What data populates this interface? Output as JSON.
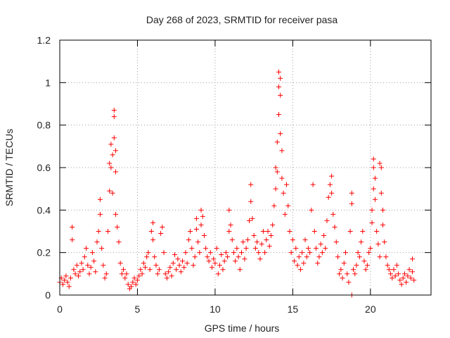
{
  "chart_data": {
    "type": "scatter",
    "title": "Day 268 of 2023, SRMTID for receiver pasa",
    "xlabel": "GPS time / hours",
    "ylabel": "SRMTID / TECUs",
    "xlim": [
      0,
      23.9
    ],
    "ylim": [
      0,
      1.2
    ],
    "xticks": [
      0,
      5,
      10,
      15,
      20
    ],
    "yticks": [
      0,
      0.2,
      0.4,
      0.6,
      0.8,
      1,
      1.2
    ],
    "ytick_labels": [
      "0",
      "0.2",
      "0.4",
      "0.6",
      "0.8",
      "1",
      "1.2"
    ],
    "grid": true,
    "marker": "+",
    "series": [
      {
        "name": "SRMTID",
        "color": "#ff0000",
        "points": [
          [
            0.0,
            0.06
          ],
          [
            0.1,
            0.08
          ],
          [
            0.2,
            0.05
          ],
          [
            0.3,
            0.07
          ],
          [
            0.4,
            0.09
          ],
          [
            0.5,
            0.06
          ],
          [
            0.6,
            0.04
          ],
          [
            0.7,
            0.08
          ],
          [
            0.8,
            0.32
          ],
          [
            0.8,
            0.26
          ],
          [
            0.9,
            0.12
          ],
          [
            1.0,
            0.1
          ],
          [
            1.1,
            0.14
          ],
          [
            1.2,
            0.09
          ],
          [
            1.3,
            0.11
          ],
          [
            1.4,
            0.15
          ],
          [
            1.5,
            0.12
          ],
          [
            1.6,
            0.18
          ],
          [
            1.7,
            0.22
          ],
          [
            1.8,
            0.14
          ],
          [
            1.9,
            0.1
          ],
          [
            2.0,
            0.13
          ],
          [
            2.1,
            0.2
          ],
          [
            2.2,
            0.16
          ],
          [
            2.3,
            0.11
          ],
          [
            2.4,
            0.25
          ],
          [
            2.5,
            0.3
          ],
          [
            2.6,
            0.38
          ],
          [
            2.6,
            0.45
          ],
          [
            2.7,
            0.22
          ],
          [
            2.8,
            0.14
          ],
          [
            2.9,
            0.08
          ],
          [
            3.0,
            0.1
          ],
          [
            3.1,
            0.3
          ],
          [
            3.2,
            0.49
          ],
          [
            3.2,
            0.62
          ],
          [
            3.3,
            0.71
          ],
          [
            3.3,
            0.6
          ],
          [
            3.4,
            0.66
          ],
          [
            3.4,
            0.48
          ],
          [
            3.5,
            0.74
          ],
          [
            3.5,
            0.87
          ],
          [
            3.5,
            0.84
          ],
          [
            3.6,
            0.68
          ],
          [
            3.6,
            0.58
          ],
          [
            3.6,
            0.38
          ],
          [
            3.7,
            0.32
          ],
          [
            3.8,
            0.25
          ],
          [
            3.9,
            0.15
          ],
          [
            4.0,
            0.1
          ],
          [
            4.1,
            0.12
          ],
          [
            4.2,
            0.08
          ],
          [
            4.3,
            0.1
          ],
          [
            4.4,
            0.05
          ],
          [
            4.5,
            0.03
          ],
          [
            4.6,
            0.04
          ],
          [
            4.7,
            0.06
          ],
          [
            4.8,
            0.08
          ],
          [
            4.9,
            0.05
          ],
          [
            5.0,
            0.07
          ],
          [
            5.1,
            0.09
          ],
          [
            5.2,
            0.12
          ],
          [
            5.3,
            0.1
          ],
          [
            5.4,
            0.15
          ],
          [
            5.5,
            0.13
          ],
          [
            5.6,
            0.18
          ],
          [
            5.7,
            0.2
          ],
          [
            5.8,
            0.12
          ],
          [
            5.9,
            0.3
          ],
          [
            6.0,
            0.34
          ],
          [
            6.0,
            0.26
          ],
          [
            6.1,
            0.18
          ],
          [
            6.2,
            0.14
          ],
          [
            6.3,
            0.1
          ],
          [
            6.4,
            0.12
          ],
          [
            6.5,
            0.29
          ],
          [
            6.6,
            0.32
          ],
          [
            6.7,
            0.2
          ],
          [
            6.8,
            0.1
          ],
          [
            6.9,
            0.08
          ],
          [
            7.0,
            0.11
          ],
          [
            7.1,
            0.13
          ],
          [
            7.2,
            0.09
          ],
          [
            7.3,
            0.15
          ],
          [
            7.4,
            0.19
          ],
          [
            7.5,
            0.12
          ],
          [
            7.6,
            0.17
          ],
          [
            7.7,
            0.14
          ],
          [
            7.8,
            0.11
          ],
          [
            7.9,
            0.16
          ],
          [
            8.0,
            0.13
          ],
          [
            8.1,
            0.2
          ],
          [
            8.2,
            0.15
          ],
          [
            8.3,
            0.26
          ],
          [
            8.4,
            0.3
          ],
          [
            8.5,
            0.22
          ],
          [
            8.6,
            0.14
          ],
          [
            8.7,
            0.18
          ],
          [
            8.8,
            0.36
          ],
          [
            8.8,
            0.31
          ],
          [
            8.9,
            0.25
          ],
          [
            9.0,
            0.2
          ],
          [
            9.1,
            0.33
          ],
          [
            9.1,
            0.4
          ],
          [
            9.2,
            0.37
          ],
          [
            9.3,
            0.28
          ],
          [
            9.4,
            0.22
          ],
          [
            9.5,
            0.18
          ],
          [
            9.6,
            0.16
          ],
          [
            9.7,
            0.2
          ],
          [
            9.8,
            0.13
          ],
          [
            9.9,
            0.17
          ],
          [
            10.0,
            0.15
          ],
          [
            10.1,
            0.22
          ],
          [
            10.2,
            0.1
          ],
          [
            10.3,
            0.14
          ],
          [
            10.4,
            0.19
          ],
          [
            10.5,
            0.12
          ],
          [
            10.6,
            0.16
          ],
          [
            10.7,
            0.2
          ],
          [
            10.8,
            0.18
          ],
          [
            10.9,
            0.3
          ],
          [
            10.9,
            0.4
          ],
          [
            11.0,
            0.33
          ],
          [
            11.1,
            0.26
          ],
          [
            11.2,
            0.2
          ],
          [
            11.3,
            0.16
          ],
          [
            11.4,
            0.22
          ],
          [
            11.5,
            0.18
          ],
          [
            11.6,
            0.12
          ],
          [
            11.7,
            0.2
          ],
          [
            11.8,
            0.25
          ],
          [
            11.9,
            0.17
          ],
          [
            12.0,
            0.22
          ],
          [
            12.1,
            0.26
          ],
          [
            12.2,
            0.35
          ],
          [
            12.3,
            0.52
          ],
          [
            12.3,
            0.44
          ],
          [
            12.4,
            0.36
          ],
          [
            12.5,
            0.28
          ],
          [
            12.6,
            0.22
          ],
          [
            12.7,
            0.25
          ],
          [
            12.8,
            0.2
          ],
          [
            12.9,
            0.17
          ],
          [
            13.0,
            0.24
          ],
          [
            13.1,
            0.3
          ],
          [
            13.2,
            0.2
          ],
          [
            13.3,
            0.26
          ],
          [
            13.4,
            0.3
          ],
          [
            13.5,
            0.23
          ],
          [
            13.6,
            0.28
          ],
          [
            13.7,
            0.33
          ],
          [
            13.8,
            0.42
          ],
          [
            13.9,
            0.5
          ],
          [
            13.9,
            0.6
          ],
          [
            14.0,
            0.58
          ],
          [
            14.0,
            0.72
          ],
          [
            14.1,
            0.85
          ],
          [
            14.1,
            0.98
          ],
          [
            14.1,
            1.05
          ],
          [
            14.2,
            1.02
          ],
          [
            14.2,
            0.94
          ],
          [
            14.2,
            0.76
          ],
          [
            14.3,
            0.68
          ],
          [
            14.3,
            0.55
          ],
          [
            14.4,
            0.48
          ],
          [
            14.5,
            0.38
          ],
          [
            14.6,
            0.52
          ],
          [
            14.7,
            0.42
          ],
          [
            14.8,
            0.3
          ],
          [
            14.9,
            0.2
          ],
          [
            15.0,
            0.26
          ],
          [
            15.1,
            0.16
          ],
          [
            15.2,
            0.22
          ],
          [
            15.3,
            0.14
          ],
          [
            15.4,
            0.18
          ],
          [
            15.5,
            0.12
          ],
          [
            15.6,
            0.2
          ],
          [
            15.7,
            0.15
          ],
          [
            15.8,
            0.26
          ],
          [
            15.9,
            0.18
          ],
          [
            16.0,
            0.22
          ],
          [
            16.1,
            0.2
          ],
          [
            16.2,
            0.4
          ],
          [
            16.3,
            0.52
          ],
          [
            16.4,
            0.3
          ],
          [
            16.5,
            0.22
          ],
          [
            16.6,
            0.15
          ],
          [
            16.7,
            0.18
          ],
          [
            16.8,
            0.24
          ],
          [
            16.9,
            0.2
          ],
          [
            17.0,
            0.28
          ],
          [
            17.1,
            0.22
          ],
          [
            17.2,
            0.35
          ],
          [
            17.3,
            0.46
          ],
          [
            17.4,
            0.52
          ],
          [
            17.5,
            0.56
          ],
          [
            17.5,
            0.48
          ],
          [
            17.6,
            0.38
          ],
          [
            17.7,
            0.32
          ],
          [
            17.8,
            0.25
          ],
          [
            17.9,
            0.18
          ],
          [
            18.0,
            0.1
          ],
          [
            18.1,
            0.12
          ],
          [
            18.2,
            0.08
          ],
          [
            18.3,
            0.15
          ],
          [
            18.4,
            0.2
          ],
          [
            18.5,
            0.1
          ],
          [
            18.6,
            0.06
          ],
          [
            18.7,
            0.3
          ],
          [
            18.8,
            0.48
          ],
          [
            18.8,
            0.43
          ],
          [
            18.9,
            0.12
          ],
          [
            18.8,
            0.0
          ],
          [
            19.0,
            0.1
          ],
          [
            19.1,
            0.14
          ],
          [
            19.2,
            0.2
          ],
          [
            19.3,
            0.18
          ],
          [
            19.4,
            0.25
          ],
          [
            19.5,
            0.3
          ],
          [
            19.6,
            0.16
          ],
          [
            19.7,
            0.12
          ],
          [
            19.8,
            0.14
          ],
          [
            19.9,
            0.2
          ],
          [
            20.0,
            0.22
          ],
          [
            20.1,
            0.34
          ],
          [
            20.1,
            0.4
          ],
          [
            20.2,
            0.5
          ],
          [
            20.2,
            0.6
          ],
          [
            20.2,
            0.64
          ],
          [
            20.3,
            0.55
          ],
          [
            20.3,
            0.45
          ],
          [
            20.4,
            0.3
          ],
          [
            20.5,
            0.24
          ],
          [
            20.6,
            0.18
          ],
          [
            20.6,
            0.62
          ],
          [
            20.7,
            0.6
          ],
          [
            20.7,
            0.48
          ],
          [
            20.8,
            0.4
          ],
          [
            20.8,
            0.33
          ],
          [
            20.9,
            0.25
          ],
          [
            21.0,
            0.18
          ],
          [
            21.1,
            0.14
          ],
          [
            21.2,
            0.12
          ],
          [
            21.3,
            0.1
          ],
          [
            21.4,
            0.08
          ],
          [
            21.5,
            0.12
          ],
          [
            21.6,
            0.09
          ],
          [
            21.7,
            0.14
          ],
          [
            21.8,
            0.1
          ],
          [
            21.9,
            0.07
          ],
          [
            22.0,
            0.05
          ],
          [
            22.1,
            0.08
          ],
          [
            22.2,
            0.1
          ],
          [
            22.3,
            0.06
          ],
          [
            22.4,
            0.09
          ],
          [
            22.5,
            0.12
          ],
          [
            22.6,
            0.08
          ],
          [
            22.7,
            0.11
          ],
          [
            22.7,
            0.17
          ],
          [
            22.8,
            0.07
          ]
        ]
      }
    ]
  }
}
